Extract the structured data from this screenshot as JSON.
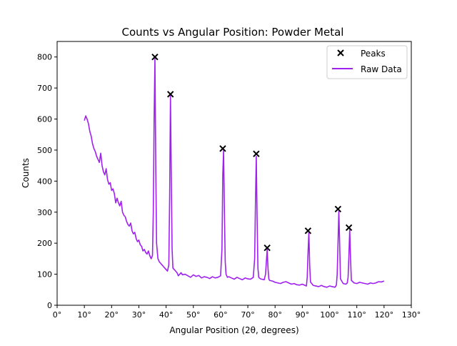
{
  "chart_data": {
    "type": "line",
    "title": "Counts vs Angular Position: Powder Metal",
    "xlabel": "Angular Position (2θ, degrees)",
    "ylabel": "Counts",
    "xlim": [
      0,
      130
    ],
    "ylim": [
      0,
      850
    ],
    "xticks": [
      0,
      10,
      20,
      30,
      40,
      50,
      60,
      70,
      80,
      90,
      100,
      110,
      120,
      130
    ],
    "xtick_labels": [
      "0°",
      "10°",
      "20°",
      "30°",
      "40°",
      "50°",
      "60°",
      "70°",
      "80°",
      "90°",
      "100°",
      "110°",
      "120°",
      "130°"
    ],
    "yticks": [
      0,
      100,
      200,
      300,
      400,
      500,
      600,
      700,
      800
    ],
    "ytick_labels": [
      "0",
      "100",
      "200",
      "300",
      "400",
      "500",
      "600",
      "700",
      "800"
    ],
    "grid": false,
    "legend_position": "top-right",
    "legend": [
      {
        "label": "Peaks",
        "marker": "x",
        "color": "#000000"
      },
      {
        "label": "Raw Data",
        "marker": "line",
        "color": "#a020f0"
      }
    ],
    "series": [
      {
        "name": "Raw Data",
        "color": "#a020f0",
        "style": "line",
        "x": [
          10,
          10.5,
          11,
          11.5,
          12,
          12.5,
          13,
          13.5,
          14,
          14.5,
          15,
          15.5,
          16,
          16.5,
          17,
          17.5,
          18,
          18.5,
          19,
          19.5,
          20,
          20.5,
          21,
          21.5,
          22,
          22.5,
          23,
          23.5,
          24,
          24.5,
          25,
          25.5,
          26,
          26.5,
          27,
          27.5,
          28,
          28.5,
          29,
          29.5,
          30,
          30.5,
          31,
          31.5,
          32,
          32.5,
          33,
          33.5,
          34,
          34.5,
          35,
          35.3,
          35.6,
          35.9,
          36.2,
          36.5,
          37,
          37.5,
          38,
          38.5,
          39,
          39.5,
          40,
          40.5,
          41,
          41.3,
          41.6,
          41.9,
          42.2,
          42.5,
          43,
          43.5,
          44,
          44.5,
          45,
          45.5,
          46,
          47,
          48,
          49,
          50,
          51,
          52,
          53,
          54,
          55,
          56,
          57,
          58,
          59,
          60,
          60.5,
          60.8,
          61.1,
          61.4,
          61.7,
          62,
          62.5,
          63,
          64,
          65,
          66,
          67,
          68,
          69,
          70,
          71,
          72,
          72.5,
          72.8,
          73.1,
          73.4,
          73.7,
          74,
          74.5,
          75,
          76,
          76.5,
          76.8,
          77.1,
          77.4,
          77.7,
          78,
          79,
          80,
          81,
          82,
          83,
          84,
          85,
          86,
          87,
          88,
          89,
          90,
          91,
          91.5,
          91.8,
          92.1,
          92.4,
          92.7,
          93,
          94,
          95,
          96,
          97,
          98,
          99,
          100,
          101,
          102,
          102.5,
          102.8,
          103.1,
          103.4,
          103.7,
          104,
          105,
          106,
          106.5,
          106.8,
          107.1,
          107.4,
          107.7,
          108,
          109,
          110,
          111,
          112,
          113,
          114,
          115,
          116,
          117,
          118,
          119,
          120
        ],
        "y": [
          595,
          610,
          600,
          585,
          560,
          545,
          520,
          505,
          495,
          480,
          470,
          460,
          490,
          450,
          430,
          420,
          440,
          405,
          390,
          395,
          370,
          375,
          360,
          330,
          345,
          330,
          320,
          335,
          300,
          290,
          285,
          270,
          260,
          255,
          265,
          240,
          230,
          235,
          215,
          205,
          210,
          195,
          190,
          175,
          180,
          170,
          165,
          175,
          160,
          150,
          160,
          300,
          600,
          795,
          450,
          200,
          150,
          140,
          135,
          130,
          125,
          120,
          115,
          110,
          130,
          350,
          675,
          420,
          180,
          120,
          115,
          110,
          105,
          95,
          100,
          105,
          98,
          100,
          95,
          90,
          98,
          93,
          96,
          88,
          92,
          90,
          86,
          92,
          88,
          90,
          95,
          180,
          420,
          500,
          300,
          140,
          100,
          90,
          92,
          88,
          84,
          90,
          86,
          82,
          88,
          85,
          84,
          90,
          150,
          330,
          480,
          280,
          120,
          90,
          86,
          84,
          82,
          100,
          140,
          180,
          120,
          85,
          80,
          78,
          74,
          72,
          70,
          74,
          76,
          72,
          68,
          70,
          66,
          65,
          68,
          64,
          62,
          90,
          170,
          235,
          130,
          75,
          64,
          62,
          60,
          64,
          60,
          58,
          62,
          60,
          58,
          65,
          100,
          200,
          305,
          200,
          85,
          70,
          68,
          72,
          90,
          160,
          245,
          150,
          80,
          72,
          70,
          74,
          72,
          70,
          68,
          72,
          70,
          72,
          76,
          75,
          78
        ]
      },
      {
        "name": "Peaks",
        "color": "#000000",
        "style": "marker-x",
        "x": [
          35.9,
          41.6,
          60.8,
          73.1,
          77.1,
          92.1,
          103.1,
          107.1
        ],
        "y": [
          800,
          680,
          505,
          488,
          185,
          240,
          310,
          250
        ]
      }
    ]
  }
}
